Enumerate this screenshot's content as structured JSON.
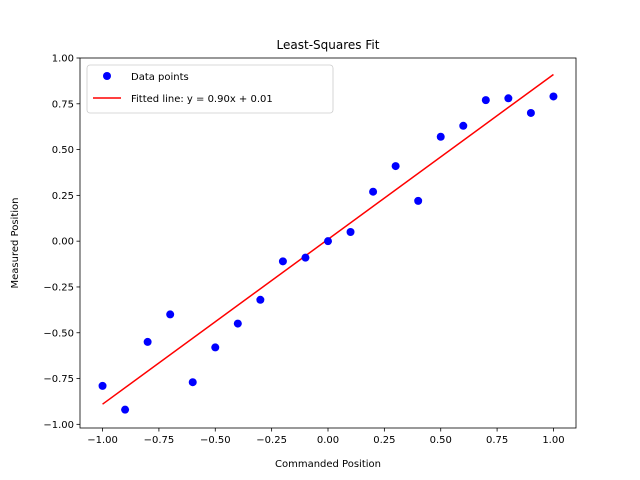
{
  "chart_data": {
    "type": "scatter",
    "title": "Least-Squares Fit",
    "xlabel": "Commanded Position",
    "ylabel": "Measured Position",
    "xlim": [
      -1.1,
      1.1
    ],
    "ylim": [
      -1.02,
      1.0
    ],
    "xticks": [
      -1.0,
      -0.75,
      -0.5,
      -0.25,
      0.0,
      0.25,
      0.5,
      0.75,
      1.0
    ],
    "xtick_labels": [
      "−1.00",
      "−0.75",
      "−0.50",
      "−0.25",
      "0.00",
      "0.25",
      "0.50",
      "0.75",
      "1.00"
    ],
    "yticks": [
      -1.0,
      -0.75,
      -0.5,
      -0.25,
      0.0,
      0.25,
      0.5,
      0.75,
      1.0
    ],
    "ytick_labels": [
      "−1.00",
      "−0.75",
      "−0.50",
      "−0.25",
      "0.00",
      "0.25",
      "0.50",
      "0.75",
      "1.00"
    ],
    "grid": false,
    "legend_position": "top-left",
    "series": [
      {
        "name": "Data points",
        "kind": "scatter",
        "color": "#0000ff",
        "points": [
          [
            -1.0,
            -0.79
          ],
          [
            -0.9,
            -0.92
          ],
          [
            -0.8,
            -0.55
          ],
          [
            -0.7,
            -0.4
          ],
          [
            -0.6,
            -0.77
          ],
          [
            -0.5,
            -0.58
          ],
          [
            -0.4,
            -0.45
          ],
          [
            -0.3,
            -0.32
          ],
          [
            -0.2,
            -0.11
          ],
          [
            -0.1,
            -0.09
          ],
          [
            0.0,
            0.0
          ],
          [
            0.1,
            0.05
          ],
          [
            0.2,
            0.27
          ],
          [
            0.3,
            0.41
          ],
          [
            0.4,
            0.22
          ],
          [
            0.5,
            0.57
          ],
          [
            0.6,
            0.63
          ],
          [
            0.7,
            0.77
          ],
          [
            0.8,
            0.78
          ],
          [
            0.9,
            0.7
          ],
          [
            1.0,
            0.79
          ]
        ]
      },
      {
        "name": "Fitted line: y = 0.90x + 0.01",
        "kind": "line",
        "color": "#ff0000",
        "points": [
          [
            -1.0,
            -0.89
          ],
          [
            1.0,
            0.91
          ]
        ]
      }
    ]
  }
}
